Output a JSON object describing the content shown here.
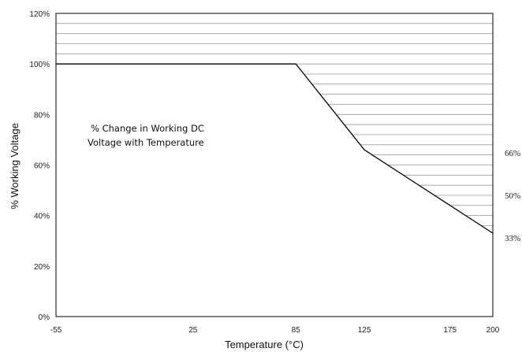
{
  "chart_data": {
    "type": "line",
    "xlabel": "Temperature (°C)",
    "ylabel": "% Working Voltage",
    "xlim": [
      -55,
      200
    ],
    "ylim": [
      0,
      120
    ],
    "x_ticks": [
      "-55",
      "25",
      "85",
      "125",
      "175",
      "200"
    ],
    "y_ticks": [
      "0%",
      "20%",
      "40%",
      "60%",
      "80%",
      "100%",
      "120%"
    ],
    "series": [
      {
        "x": [
          -55,
          85,
          125,
          200
        ],
        "y": [
          100,
          100,
          66,
          33
        ]
      }
    ],
    "annotation": {
      "line1": "% Change in Working DC",
      "line2": "Voltage with Temperature"
    },
    "right_labels": [
      "66%",
      "50%",
      "33%"
    ],
    "grid": "horizontal lines in region above curve",
    "colors": {
      "line": "#000000",
      "grid": "#9a9a9a",
      "frame": "#000000"
    }
  }
}
